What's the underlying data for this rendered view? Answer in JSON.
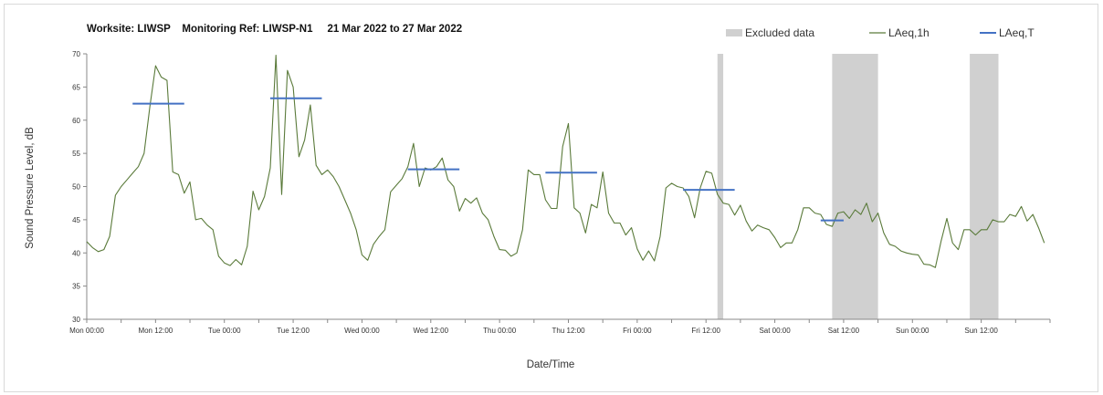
{
  "chart_data": {
    "type": "line",
    "title": "Worksite: LIWSP    Monitoring Ref: LIWSP-N1     21 Mar 2022 to 27 Mar 2022",
    "xlabel": "Date/Time",
    "ylabel": "Sound Pressure Level, dB",
    "ylim": [
      30,
      70
    ],
    "yticks": [
      "30",
      "35",
      "40",
      "45",
      "50",
      "55",
      "60",
      "65",
      "70"
    ],
    "x_start": "2022-03-21 00:00",
    "x_end": "2022-03-28 00:00",
    "xticks": [
      {
        "label": "Mon 00:00",
        "t": "2022-03-21 00:00"
      },
      {
        "label": "Mon 12:00",
        "t": "2022-03-21 12:00"
      },
      {
        "label": "Tue 00:00",
        "t": "2022-03-22 00:00"
      },
      {
        "label": "Tue 12:00",
        "t": "2022-03-22 12:00"
      },
      {
        "label": "Wed 00:00",
        "t": "2022-03-23 00:00"
      },
      {
        "label": "Wed 12:00",
        "t": "2022-03-23 12:00"
      },
      {
        "label": "Thu 00:00",
        "t": "2022-03-24 00:00"
      },
      {
        "label": "Thu 12:00",
        "t": "2022-03-24 12:00"
      },
      {
        "label": "Fri 00:00",
        "t": "2022-03-25 00:00"
      },
      {
        "label": "Fri 12:00",
        "t": "2022-03-25 12:00"
      },
      {
        "label": "Sat 00:00",
        "t": "2022-03-26 00:00"
      },
      {
        "label": "Sat 12:00",
        "t": "2022-03-26 12:00"
      },
      {
        "label": "Sun 00:00",
        "t": "2022-03-27 00:00"
      },
      {
        "label": "Sun 12:00",
        "t": "2022-03-27 12:00"
      }
    ],
    "grid": false,
    "legend_position": "top-right",
    "legend": [
      {
        "label": "Excluded data",
        "kind": "band",
        "color": "#d0d0d0"
      },
      {
        "label": "LAeq,1h",
        "kind": "line",
        "color": "#5a7a3a"
      },
      {
        "label": "LAeq,T",
        "kind": "line",
        "color": "#4472c4"
      }
    ],
    "excluded": [
      {
        "from": "2022-03-25 14:00",
        "to": "2022-03-25 15:00"
      },
      {
        "from": "2022-03-26 10:00",
        "to": "2022-03-26 18:00"
      },
      {
        "from": "2022-03-27 10:00",
        "to": "2022-03-27 15:00"
      }
    ],
    "series": [
      {
        "name": "LAeq,1h",
        "color": "#5a7a3a",
        "points": [
          [
            "2022-03-21 00:00",
            41.7
          ],
          [
            "2022-03-21 01:00",
            40.8
          ],
          [
            "2022-03-21 02:00",
            40.2
          ],
          [
            "2022-03-21 03:00",
            40.5
          ],
          [
            "2022-03-21 04:00",
            42.5
          ],
          [
            "2022-03-21 05:00",
            48.7
          ],
          [
            "2022-03-21 06:00",
            50.0
          ],
          [
            "2022-03-21 07:00",
            51.0
          ],
          [
            "2022-03-21 08:00",
            52.0
          ],
          [
            "2022-03-21 09:00",
            53.0
          ],
          [
            "2022-03-21 10:00",
            55.0
          ],
          [
            "2022-03-21 11:00",
            62.0
          ],
          [
            "2022-03-21 12:00",
            68.2
          ],
          [
            "2022-03-21 13:00",
            66.5
          ],
          [
            "2022-03-21 14:00",
            66.0
          ],
          [
            "2022-03-21 15:00",
            52.2
          ],
          [
            "2022-03-21 16:00",
            51.8
          ],
          [
            "2022-03-21 17:00",
            49.0
          ],
          [
            "2022-03-21 18:00",
            50.7
          ],
          [
            "2022-03-21 19:00",
            45.0
          ],
          [
            "2022-03-21 20:00",
            45.2
          ],
          [
            "2022-03-21 21:00",
            44.2
          ],
          [
            "2022-03-21 22:00",
            43.5
          ],
          [
            "2022-03-21 23:00",
            39.5
          ],
          [
            "2022-03-22 00:00",
            38.5
          ],
          [
            "2022-03-22 01:00",
            38.1
          ],
          [
            "2022-03-22 02:00",
            39.0
          ],
          [
            "2022-03-22 03:00",
            38.2
          ],
          [
            "2022-03-22 04:00",
            41.0
          ],
          [
            "2022-03-22 05:00",
            49.3
          ],
          [
            "2022-03-22 06:00",
            46.5
          ],
          [
            "2022-03-22 07:00",
            48.5
          ],
          [
            "2022-03-22 08:00",
            52.8
          ],
          [
            "2022-03-22 09:00",
            69.8
          ],
          [
            "2022-03-22 10:00",
            48.8
          ],
          [
            "2022-03-22 11:00",
            67.5
          ],
          [
            "2022-03-22 12:00",
            65.0
          ],
          [
            "2022-03-22 13:00",
            54.5
          ],
          [
            "2022-03-22 14:00",
            57.0
          ],
          [
            "2022-03-22 15:00",
            62.3
          ],
          [
            "2022-03-22 16:00",
            53.2
          ],
          [
            "2022-03-22 17:00",
            51.8
          ],
          [
            "2022-03-22 18:00",
            52.5
          ],
          [
            "2022-03-22 19:00",
            51.5
          ],
          [
            "2022-03-22 20:00",
            50.0
          ],
          [
            "2022-03-22 21:00",
            48.0
          ],
          [
            "2022-03-22 22:00",
            46.0
          ],
          [
            "2022-03-22 23:00",
            43.5
          ],
          [
            "2022-03-23 00:00",
            39.7
          ],
          [
            "2022-03-23 01:00",
            38.9
          ],
          [
            "2022-03-23 02:00",
            41.3
          ],
          [
            "2022-03-23 03:00",
            42.5
          ],
          [
            "2022-03-23 04:00",
            43.5
          ],
          [
            "2022-03-23 05:00",
            49.2
          ],
          [
            "2022-03-23 06:00",
            50.2
          ],
          [
            "2022-03-23 07:00",
            51.2
          ],
          [
            "2022-03-23 08:00",
            53.0
          ],
          [
            "2022-03-23 09:00",
            56.5
          ],
          [
            "2022-03-23 10:00",
            50.0
          ],
          [
            "2022-03-23 11:00",
            52.8
          ],
          [
            "2022-03-23 12:00",
            52.5
          ],
          [
            "2022-03-23 13:00",
            53.0
          ],
          [
            "2022-03-23 14:00",
            54.3
          ],
          [
            "2022-03-23 15:00",
            51.0
          ],
          [
            "2022-03-23 16:00",
            50.0
          ],
          [
            "2022-03-23 17:00",
            46.3
          ],
          [
            "2022-03-23 18:00",
            48.2
          ],
          [
            "2022-03-23 19:00",
            47.5
          ],
          [
            "2022-03-23 20:00",
            48.3
          ],
          [
            "2022-03-23 21:00",
            46.0
          ],
          [
            "2022-03-23 22:00",
            45.0
          ],
          [
            "2022-03-23 23:00",
            42.5
          ],
          [
            "2022-03-24 00:00",
            40.5
          ],
          [
            "2022-03-24 01:00",
            40.4
          ],
          [
            "2022-03-24 02:00",
            39.5
          ],
          [
            "2022-03-24 03:00",
            40.0
          ],
          [
            "2022-03-24 04:00",
            43.5
          ],
          [
            "2022-03-24 05:00",
            52.5
          ],
          [
            "2022-03-24 06:00",
            51.8
          ],
          [
            "2022-03-24 07:00",
            51.8
          ],
          [
            "2022-03-24 08:00",
            48.0
          ],
          [
            "2022-03-24 09:00",
            46.7
          ],
          [
            "2022-03-24 10:00",
            46.7
          ],
          [
            "2022-03-24 11:00",
            56.0
          ],
          [
            "2022-03-24 12:00",
            59.5
          ],
          [
            "2022-03-24 13:00",
            46.8
          ],
          [
            "2022-03-24 14:00",
            46.0
          ],
          [
            "2022-03-24 15:00",
            43.0
          ],
          [
            "2022-03-24 16:00",
            47.3
          ],
          [
            "2022-03-24 17:00",
            46.8
          ],
          [
            "2022-03-24 18:00",
            52.2
          ],
          [
            "2022-03-24 19:00",
            46.0
          ],
          [
            "2022-03-24 20:00",
            44.5
          ],
          [
            "2022-03-24 21:00",
            44.5
          ],
          [
            "2022-03-24 22:00",
            42.7
          ],
          [
            "2022-03-24 23:00",
            43.8
          ],
          [
            "2022-03-25 00:00",
            40.6
          ],
          [
            "2022-03-25 01:00",
            38.9
          ],
          [
            "2022-03-25 02:00",
            40.3
          ],
          [
            "2022-03-25 03:00",
            38.8
          ],
          [
            "2022-03-25 04:00",
            42.5
          ],
          [
            "2022-03-25 05:00",
            49.8
          ],
          [
            "2022-03-25 06:00",
            50.5
          ],
          [
            "2022-03-25 07:00",
            50.0
          ],
          [
            "2022-03-25 08:00",
            49.8
          ],
          [
            "2022-03-25 09:00",
            48.5
          ],
          [
            "2022-03-25 10:00",
            45.3
          ],
          [
            "2022-03-25 11:00",
            49.8
          ],
          [
            "2022-03-25 12:00",
            52.3
          ],
          [
            "2022-03-25 13:00",
            52.0
          ],
          [
            "2022-03-25 14:00",
            48.8
          ],
          [
            "2022-03-25 15:00",
            47.5
          ],
          [
            "2022-03-25 16:00",
            47.3
          ],
          [
            "2022-03-25 17:00",
            45.7
          ],
          [
            "2022-03-25 18:00",
            47.2
          ],
          [
            "2022-03-25 19:00",
            44.8
          ],
          [
            "2022-03-25 20:00",
            43.3
          ],
          [
            "2022-03-25 21:00",
            44.2
          ],
          [
            "2022-03-25 22:00",
            43.8
          ],
          [
            "2022-03-25 23:00",
            43.5
          ],
          [
            "2022-03-26 00:00",
            42.3
          ],
          [
            "2022-03-26 01:00",
            40.8
          ],
          [
            "2022-03-26 02:00",
            41.5
          ],
          [
            "2022-03-26 03:00",
            41.5
          ],
          [
            "2022-03-26 04:00",
            43.5
          ],
          [
            "2022-03-26 05:00",
            46.8
          ],
          [
            "2022-03-26 06:00",
            46.8
          ],
          [
            "2022-03-26 07:00",
            46.0
          ],
          [
            "2022-03-26 08:00",
            45.8
          ],
          [
            "2022-03-26 09:00",
            44.3
          ],
          [
            "2022-03-26 10:00",
            44.0
          ],
          [
            "2022-03-26 11:00",
            46.0
          ],
          [
            "2022-03-26 12:00",
            46.2
          ],
          [
            "2022-03-26 13:00",
            45.2
          ],
          [
            "2022-03-26 14:00",
            46.5
          ],
          [
            "2022-03-26 15:00",
            45.8
          ],
          [
            "2022-03-26 16:00",
            47.5
          ],
          [
            "2022-03-26 17:00",
            44.7
          ],
          [
            "2022-03-26 18:00",
            46.0
          ],
          [
            "2022-03-26 19:00",
            43.0
          ],
          [
            "2022-03-26 20:00",
            41.3
          ],
          [
            "2022-03-26 21:00",
            41.0
          ],
          [
            "2022-03-26 22:00",
            40.3
          ],
          [
            "2022-03-26 23:00",
            40.0
          ],
          [
            "2022-03-27 00:00",
            39.8
          ],
          [
            "2022-03-27 01:00",
            39.7
          ],
          [
            "2022-03-27 02:00",
            38.3
          ],
          [
            "2022-03-27 03:00",
            38.2
          ],
          [
            "2022-03-27 04:00",
            37.8
          ],
          [
            "2022-03-27 05:00",
            41.8
          ],
          [
            "2022-03-27 06:00",
            45.2
          ],
          [
            "2022-03-27 07:00",
            41.5
          ],
          [
            "2022-03-27 08:00",
            40.5
          ],
          [
            "2022-03-27 09:00",
            43.5
          ],
          [
            "2022-03-27 10:00",
            43.5
          ],
          [
            "2022-03-27 11:00",
            42.7
          ],
          [
            "2022-03-27 12:00",
            43.5
          ],
          [
            "2022-03-27 13:00",
            43.5
          ],
          [
            "2022-03-27 14:00",
            45.0
          ],
          [
            "2022-03-27 15:00",
            44.7
          ],
          [
            "2022-03-27 16:00",
            44.7
          ],
          [
            "2022-03-27 17:00",
            45.8
          ],
          [
            "2022-03-27 18:00",
            45.5
          ],
          [
            "2022-03-27 19:00",
            47.0
          ],
          [
            "2022-03-27 20:00",
            44.8
          ],
          [
            "2022-03-27 21:00",
            45.8
          ],
          [
            "2022-03-27 22:00",
            43.8
          ],
          [
            "2022-03-27 23:00",
            41.5
          ]
        ]
      },
      {
        "name": "LAeq,T",
        "color": "#4472c4",
        "segments": [
          {
            "from": "2022-03-21 08:00",
            "to": "2022-03-21 17:00",
            "value": 62.5
          },
          {
            "from": "2022-03-22 08:00",
            "to": "2022-03-22 17:00",
            "value": 63.3
          },
          {
            "from": "2022-03-23 08:00",
            "to": "2022-03-23 17:00",
            "value": 52.6
          },
          {
            "from": "2022-03-24 08:00",
            "to": "2022-03-24 17:00",
            "value": 52.1
          },
          {
            "from": "2022-03-25 08:00",
            "to": "2022-03-25 17:00",
            "value": 49.5
          },
          {
            "from": "2022-03-26 08:00",
            "to": "2022-03-26 12:00",
            "value": 44.9
          }
        ]
      }
    ]
  }
}
